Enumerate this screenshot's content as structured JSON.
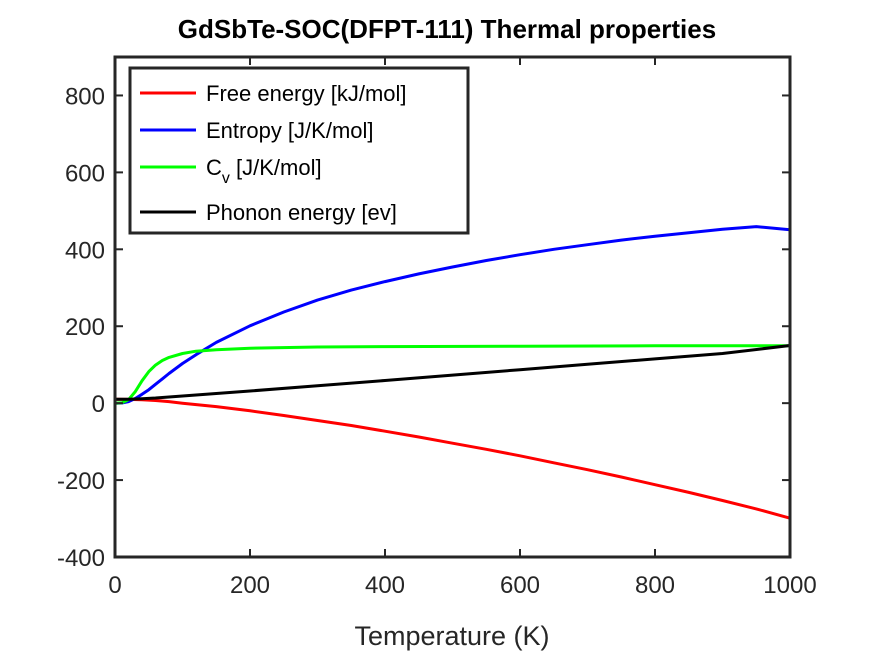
{
  "chart_data": {
    "type": "line",
    "title": "GdSbTe-SOC(DFPT-111) Thermal properties",
    "xlabel": "Temperature (K)",
    "ylabel": "",
    "xlim": [
      0,
      1000
    ],
    "ylim": [
      -400,
      900
    ],
    "x_ticks": [
      "0",
      "200",
      "400",
      "600",
      "800",
      "1000"
    ],
    "y_ticks": [
      "-400",
      "-200",
      "0",
      "200",
      "400",
      "600",
      "800"
    ],
    "grid": false,
    "legend_position": "top-left",
    "series": [
      {
        "name": "Free energy [kJ/mol]",
        "color": "#ff0000",
        "points": [
          [
            0,
            10
          ],
          [
            20,
            9.8
          ],
          [
            40,
            9
          ],
          [
            60,
            7
          ],
          [
            80,
            4
          ],
          [
            100,
            0
          ],
          [
            150,
            -9
          ],
          [
            200,
            -20
          ],
          [
            250,
            -32
          ],
          [
            300,
            -45
          ],
          [
            350,
            -58
          ],
          [
            400,
            -73
          ],
          [
            450,
            -88
          ],
          [
            500,
            -104
          ],
          [
            550,
            -120
          ],
          [
            600,
            -137
          ],
          [
            650,
            -155
          ],
          [
            700,
            -173
          ],
          [
            750,
            -192
          ],
          [
            800,
            -212
          ],
          [
            850,
            -232
          ],
          [
            900,
            -253
          ],
          [
            950,
            -275
          ],
          [
            1000,
            -299
          ]
        ]
      },
      {
        "name": "Entropy [J/K/mol]",
        "color": "#0000ff",
        "points": [
          [
            0,
            0
          ],
          [
            10,
            0.5
          ],
          [
            20,
            4
          ],
          [
            30,
            12
          ],
          [
            40,
            23
          ],
          [
            50,
            35
          ],
          [
            60,
            49
          ],
          [
            70,
            63
          ],
          [
            80,
            77
          ],
          [
            100,
            103
          ],
          [
            120,
            126
          ],
          [
            150,
            158
          ],
          [
            200,
            201
          ],
          [
            250,
            237
          ],
          [
            300,
            268
          ],
          [
            350,
            294
          ],
          [
            400,
            316
          ],
          [
            450,
            336
          ],
          [
            500,
            354
          ],
          [
            550,
            371
          ],
          [
            600,
            386
          ],
          [
            650,
            400
          ],
          [
            700,
            412
          ],
          [
            750,
            424
          ],
          [
            800,
            434
          ],
          [
            850,
            443
          ],
          [
            900,
            452
          ],
          [
            950,
            459
          ],
          [
            1000,
            451
          ]
        ]
      },
      {
        "name": "C_v [J/K/mol]",
        "color": "#00ff00",
        "points": [
          [
            0,
            0
          ],
          [
            10,
            1
          ],
          [
            20,
            9
          ],
          [
            30,
            30
          ],
          [
            40,
            58
          ],
          [
            50,
            82
          ],
          [
            60,
            99
          ],
          [
            70,
            111
          ],
          [
            80,
            119
          ],
          [
            100,
            129
          ],
          [
            120,
            135
          ],
          [
            150,
            139
          ],
          [
            200,
            143
          ],
          [
            300,
            146
          ],
          [
            400,
            147
          ],
          [
            600,
            148
          ],
          [
            800,
            149
          ],
          [
            1000,
            149
          ]
        ]
      },
      {
        "name": "Phonon energy [ev]",
        "color": "#000000",
        "points": [
          [
            0,
            10
          ],
          [
            20,
            10.2
          ],
          [
            40,
            11.5
          ],
          [
            60,
            13.5
          ],
          [
            80,
            16
          ],
          [
            100,
            18.5
          ],
          [
            150,
            25
          ],
          [
            200,
            31.5
          ],
          [
            300,
            45
          ],
          [
            400,
            59
          ],
          [
            500,
            73
          ],
          [
            600,
            87
          ],
          [
            700,
            101
          ],
          [
            800,
            115
          ],
          [
            900,
            129
          ],
          [
            1000,
            150
          ]
        ]
      }
    ]
  }
}
